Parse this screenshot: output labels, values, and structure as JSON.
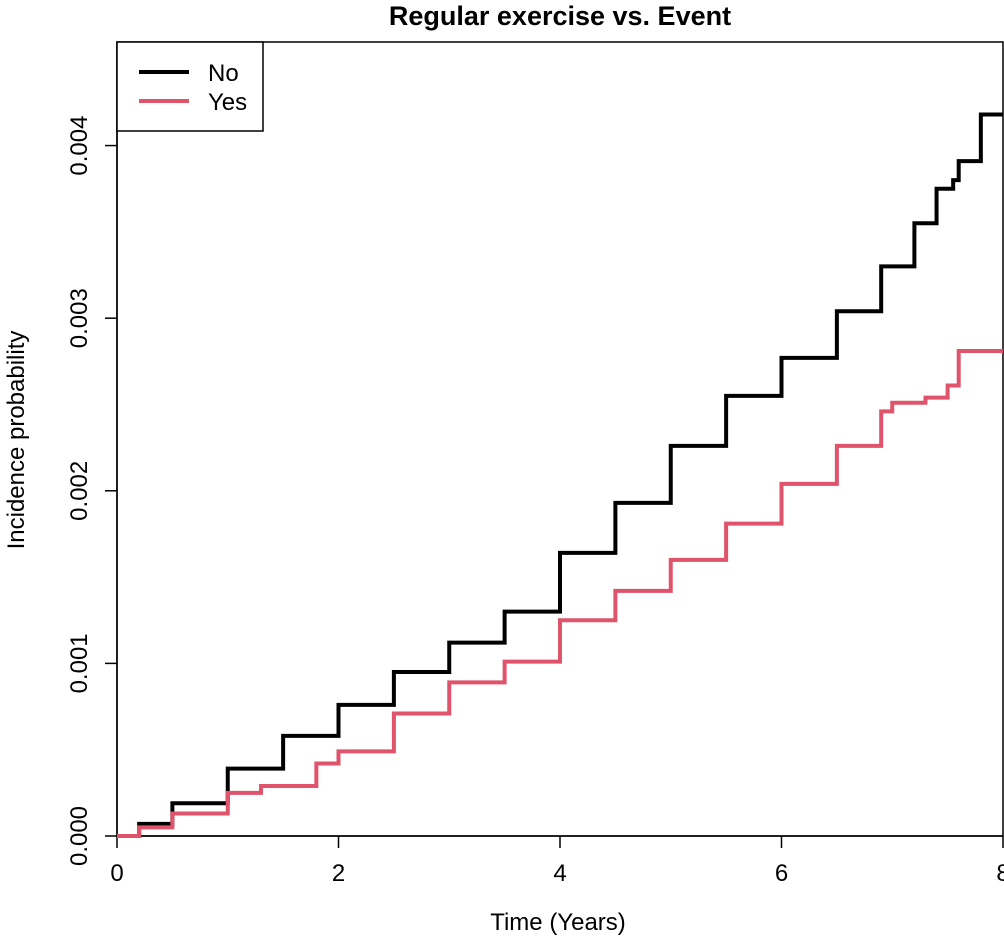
{
  "chart_data": {
    "type": "line",
    "title": "Regular exercise vs. Event",
    "xlabel": "Time (Years)",
    "ylabel": "Incidence probability",
    "xlim": [
      0,
      8
    ],
    "ylim": [
      0,
      0.0046
    ],
    "xticks": [
      0,
      2,
      4,
      6,
      8
    ],
    "xtick_labels": [
      "0",
      "2",
      "4",
      "6",
      "8"
    ],
    "yticks": [
      0,
      0.001,
      0.002,
      0.003,
      0.004
    ],
    "ytick_labels": [
      "0.000",
      "0.001",
      "0.002",
      "0.003",
      "0.004"
    ],
    "grid": false,
    "legend_position": "top-left",
    "series": [
      {
        "name": "No",
        "color": "#000000",
        "x": [
          0,
          0.2,
          0.5,
          1.0,
          1.5,
          2.0,
          2.5,
          3.0,
          3.5,
          4.0,
          4.5,
          5.0,
          5.5,
          6.0,
          6.5,
          6.9,
          7.2,
          7.4,
          7.55,
          7.6,
          7.75,
          7.8,
          7.92,
          8.0
        ],
        "y": [
          0,
          7e-05,
          0.00019,
          0.00039,
          0.00058,
          0.00076,
          0.00095,
          0.00112,
          0.0013,
          0.00164,
          0.00193,
          0.00226,
          0.00255,
          0.00277,
          0.00304,
          0.0033,
          0.00355,
          0.00375,
          0.0038,
          0.00391,
          0.00391,
          0.00418,
          0.00418,
          0.00418
        ]
      },
      {
        "name": "Yes",
        "color": "#DF536B",
        "x": [
          0,
          0.2,
          0.5,
          1.0,
          1.3,
          1.8,
          2.0,
          2.5,
          3.0,
          3.5,
          4.0,
          4.5,
          5.0,
          5.5,
          6.0,
          6.5,
          6.9,
          7.0,
          7.3,
          7.5,
          7.6,
          8.0
        ],
        "y": [
          0,
          5e-05,
          0.00013,
          0.00025,
          0.00029,
          0.00042,
          0.00049,
          0.00071,
          0.00089,
          0.00101,
          0.00125,
          0.00142,
          0.0016,
          0.00181,
          0.00204,
          0.00226,
          0.00246,
          0.00251,
          0.00254,
          0.00261,
          0.00281,
          0.00281
        ]
      }
    ]
  }
}
